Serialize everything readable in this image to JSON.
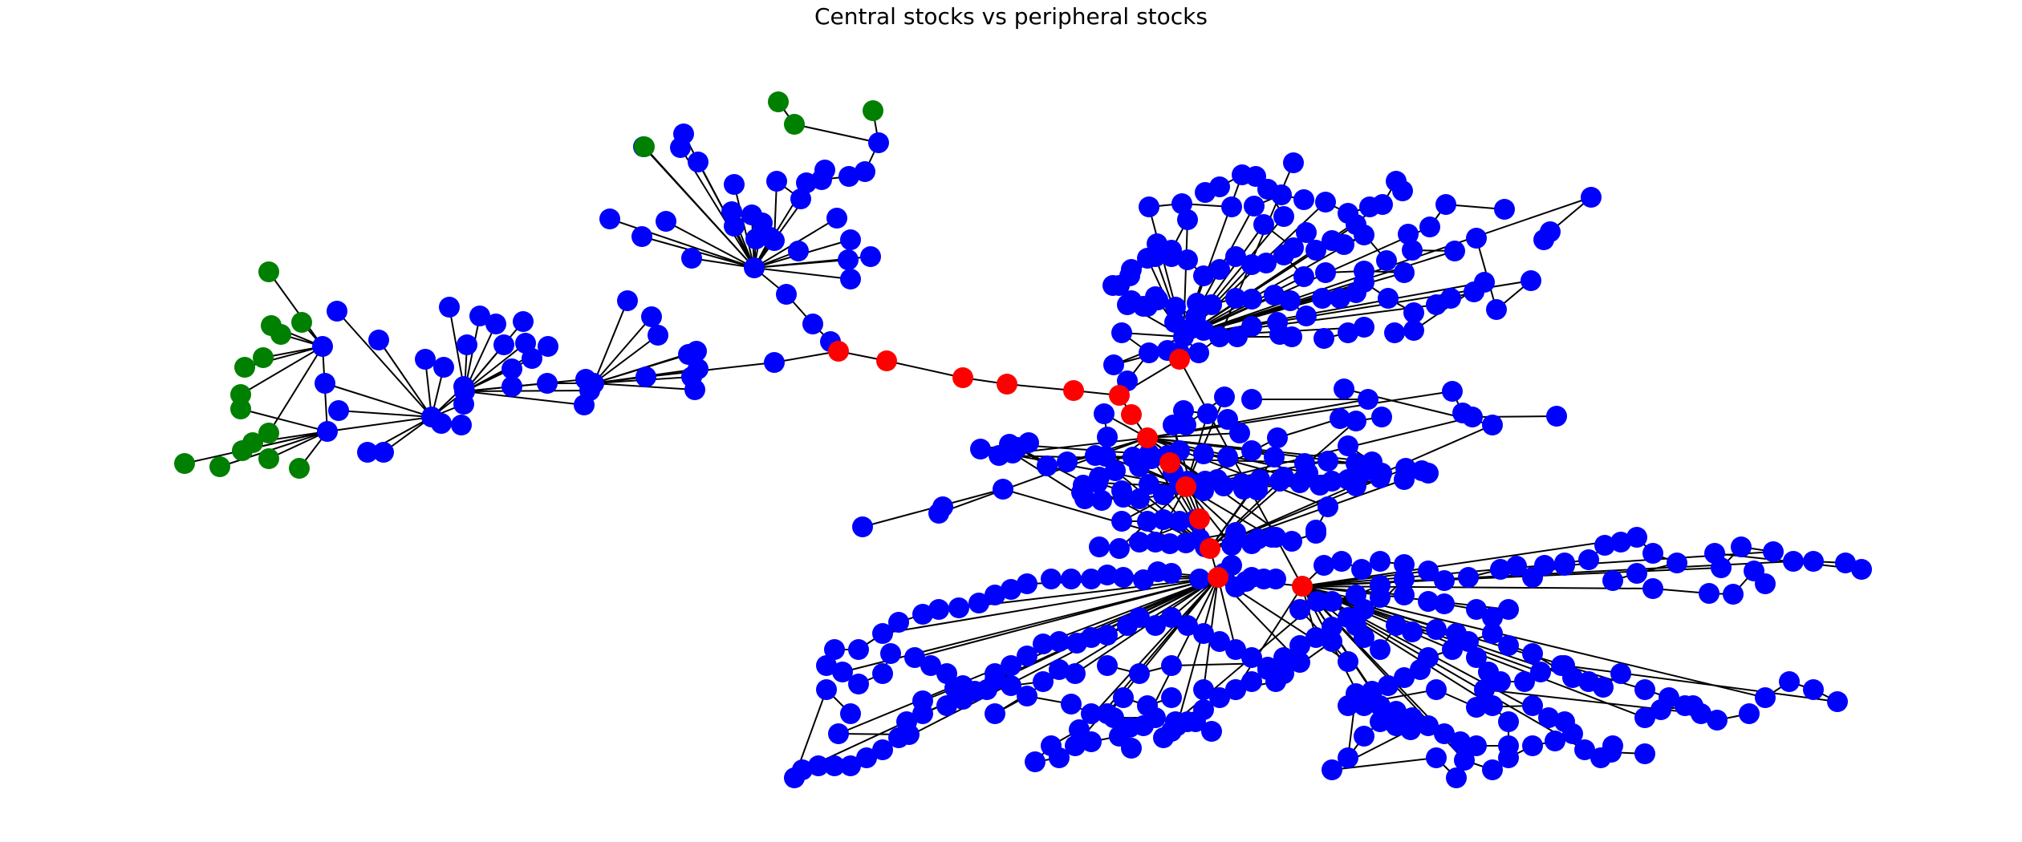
{
  "title": "Central stocks vs peripheral stocks",
  "legend": {
    "central_color": "#ff0000",
    "peripheral_color": "#008000",
    "other_color": "#0000ff"
  },
  "graph": {
    "type": "network",
    "node_groups": [
      {
        "group": "central",
        "color": "#ff0000",
        "count": 16
      },
      {
        "group": "peripheral",
        "color": "#008000",
        "count": 17
      },
      {
        "group": "other",
        "color": "#0000ff"
      }
    ]
  }
}
